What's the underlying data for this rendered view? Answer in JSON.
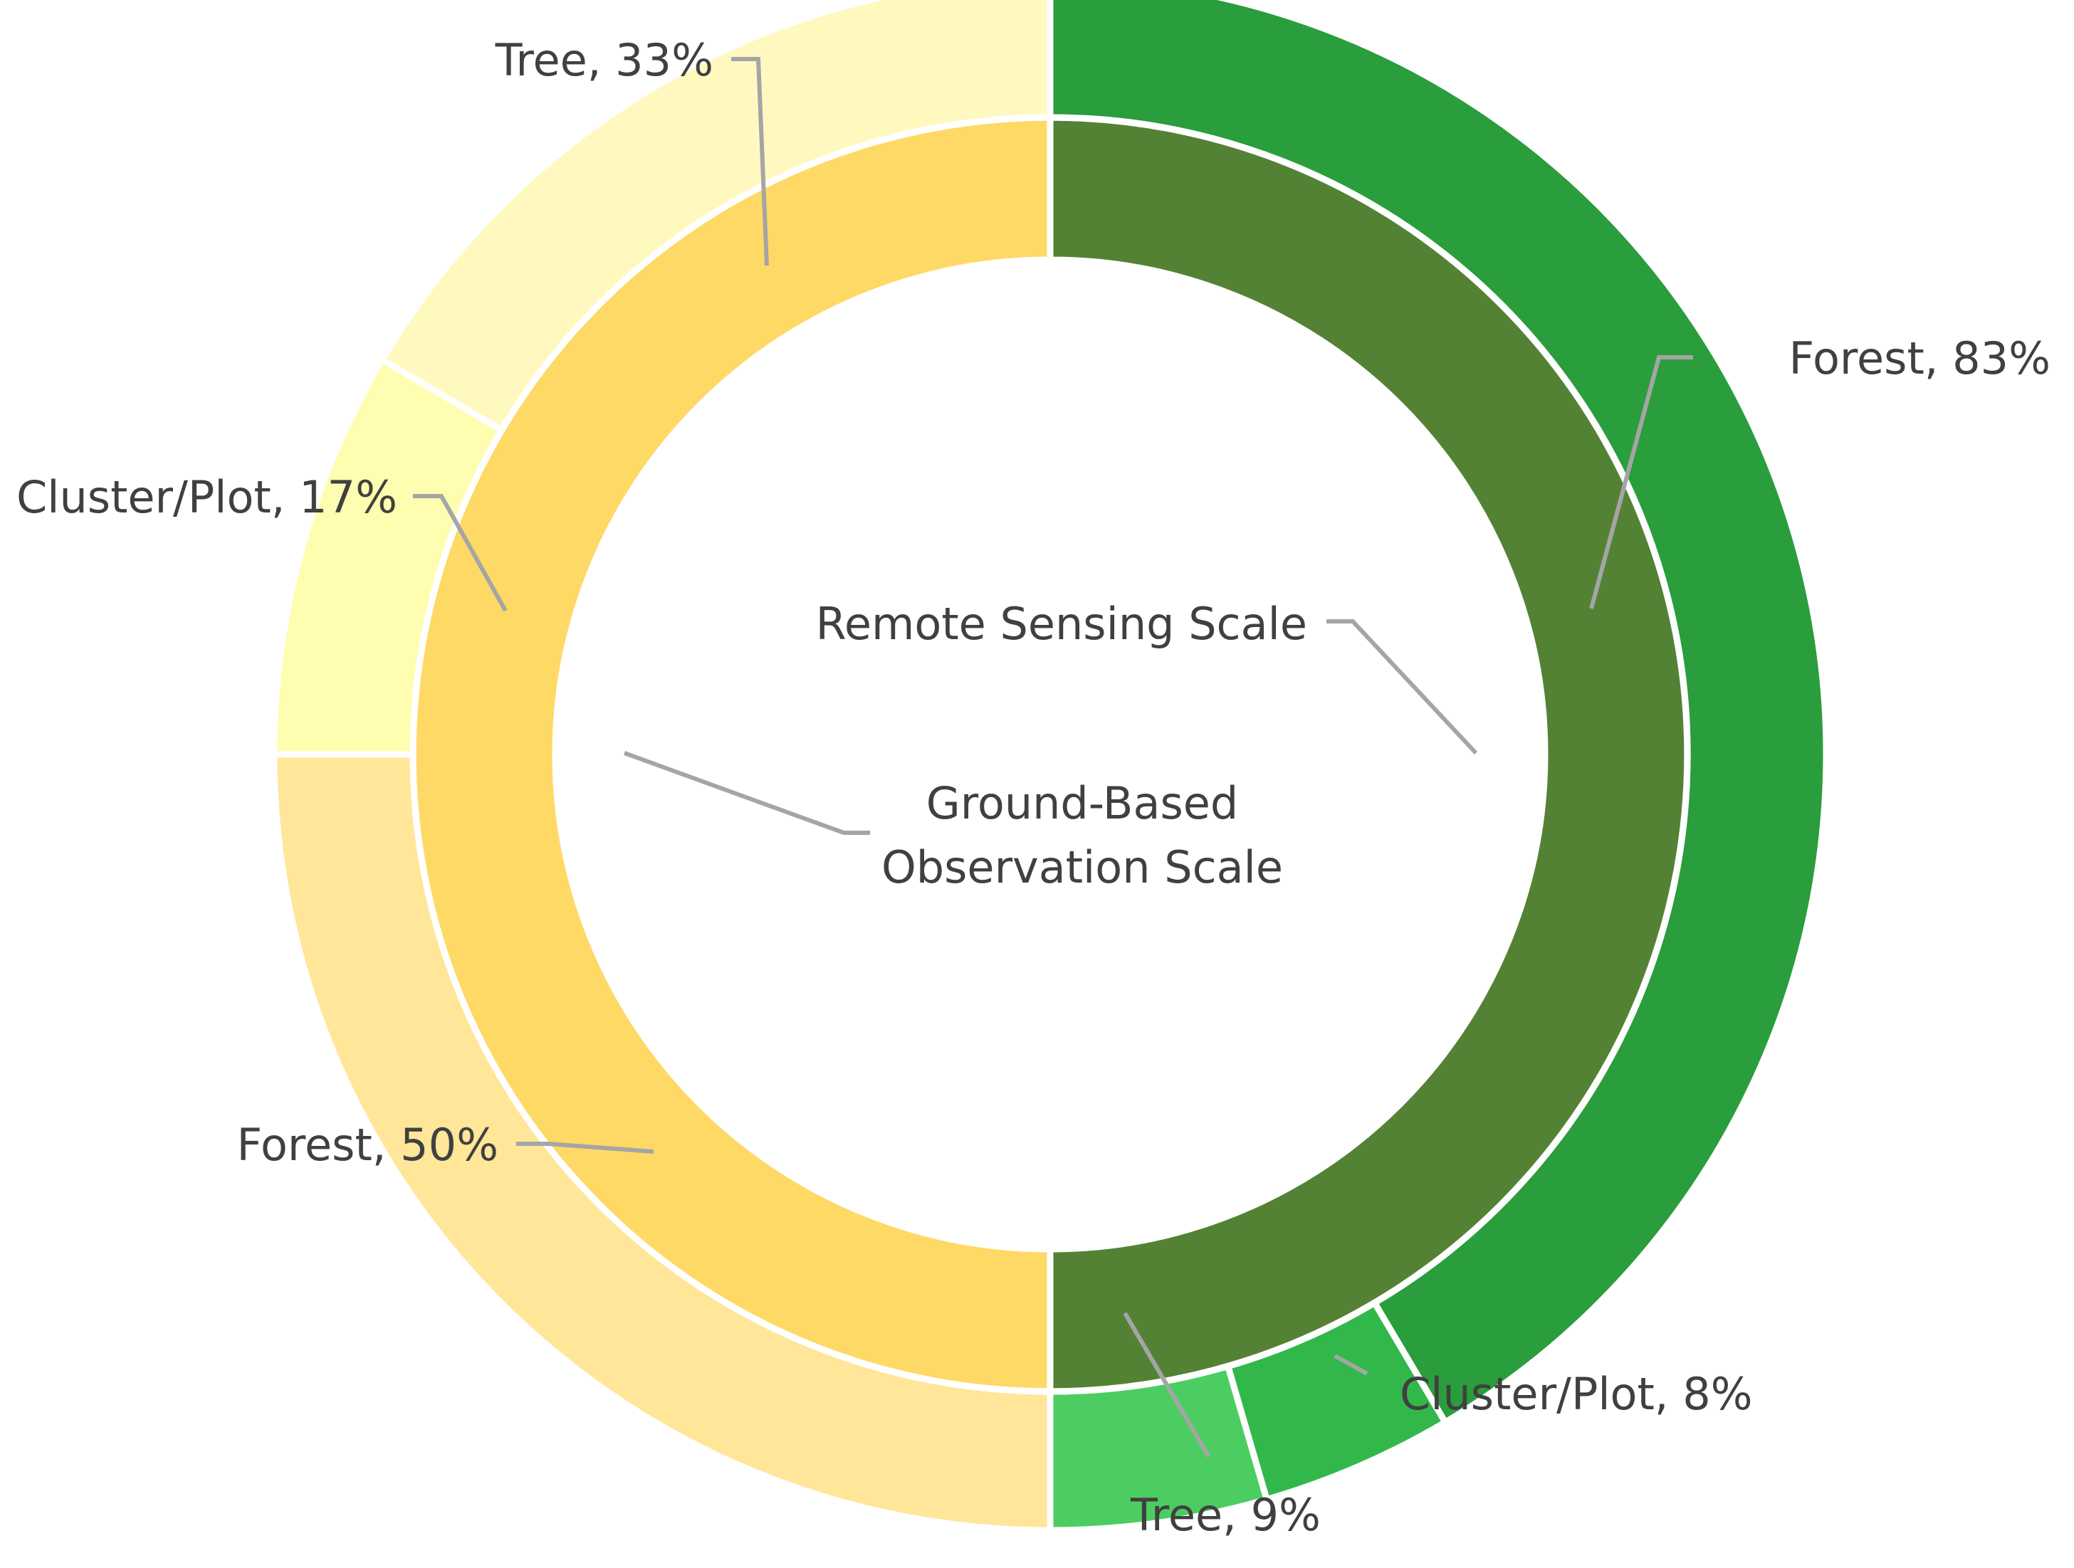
{
  "chart_data": {
    "type": "pie",
    "variant": "nested-donut",
    "title": "",
    "start_angle_deg": 0,
    "direction": "clockwise",
    "inner_ring": {
      "slices": [
        {
          "name": "Remote Sensing Scale",
          "value": 50,
          "color": "#548235"
        },
        {
          "name": "Ground-Based Observation Scale",
          "value": 50,
          "color": "#FFD966"
        }
      ]
    },
    "outer_ring": {
      "slices": [
        {
          "group": "Remote Sensing Scale",
          "name": "Forest",
          "value": 83,
          "display": "Forest, 83%",
          "color": "#2A9D3C"
        },
        {
          "group": "Remote Sensing Scale",
          "name": "Cluster/Plot",
          "value": 8,
          "display": "Cluster/Plot, 8%",
          "color": "#32B84A"
        },
        {
          "group": "Remote Sensing Scale",
          "name": "Tree",
          "value": 9,
          "display": "Tree, 9%",
          "color": "#4CCD61"
        },
        {
          "group": "Ground-Based Observation Scale",
          "name": "Forest",
          "value": 50,
          "display": "Forest, 50%",
          "color": "#FFE699"
        },
        {
          "group": "Ground-Based Observation Scale",
          "name": "Cluster/Plot",
          "value": 17,
          "display": "Cluster/Plot, 17%",
          "color": "#FFFDAF"
        },
        {
          "group": "Ground-Based Observation Scale",
          "name": "Tree",
          "value": 33,
          "display": "Tree, 33%",
          "color": "#FFF9C0"
        }
      ]
    },
    "labels": {
      "remote": "Remote Sensing Scale",
      "ground_line1": "Ground-Based",
      "ground_line2": "Observation Scale"
    },
    "leader_color": "#A5A5A5",
    "label_color": "#404040",
    "legend": "none"
  }
}
